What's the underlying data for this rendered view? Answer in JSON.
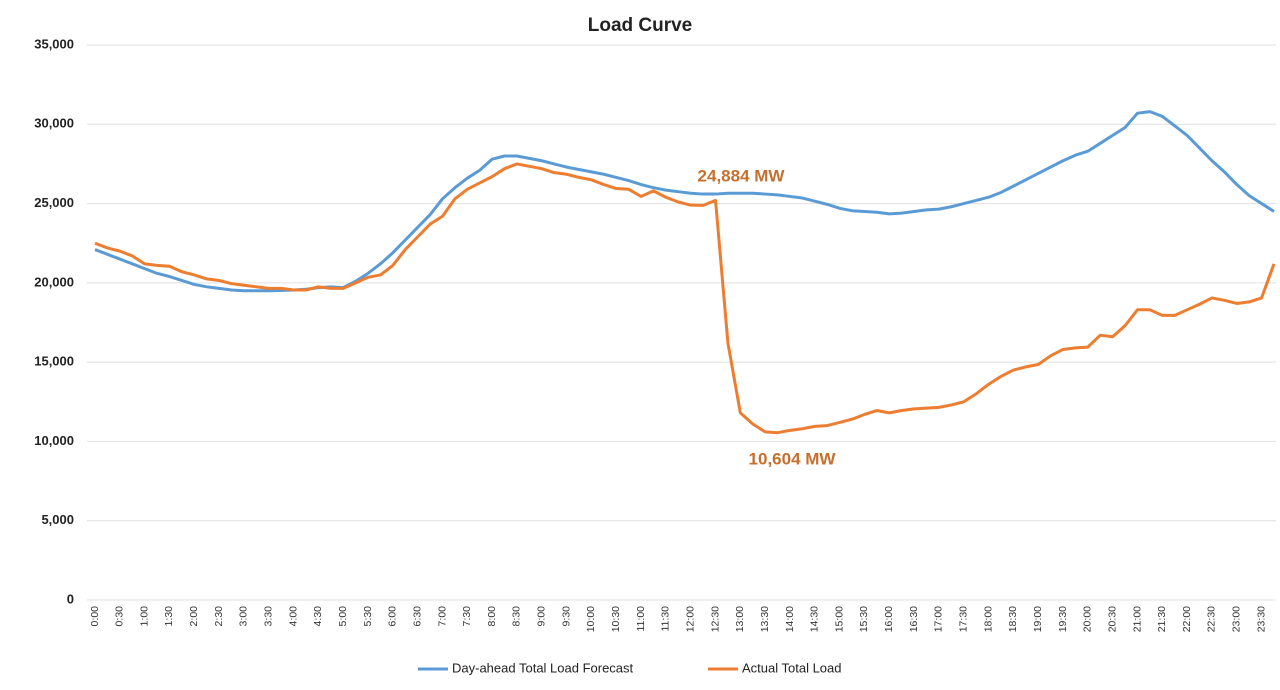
{
  "chart_data": {
    "type": "line",
    "title": "Load Curve",
    "categories": [
      "0:00",
      null,
      "0:30",
      null,
      "1:00",
      null,
      "1:30",
      null,
      "2:00",
      null,
      "2:30",
      null,
      "3:00",
      null,
      "3:30",
      null,
      "4:00",
      null,
      "4:30",
      null,
      "5:00",
      null,
      "5:30",
      null,
      "6:00",
      null,
      "6:30",
      null,
      "7:00",
      null,
      "7:30",
      null,
      "8:00",
      null,
      "8:30",
      null,
      "9:00",
      null,
      "9:30",
      null,
      "10:00",
      null,
      "10:30",
      null,
      "11:00",
      null,
      "11:30",
      null,
      "12:00",
      null,
      "12:30",
      null,
      "13:00",
      null,
      "13:30",
      null,
      "14:00",
      null,
      "14:30",
      null,
      "15:00",
      null,
      "15:30",
      null,
      "16:00",
      null,
      "16:30",
      null,
      "17:00",
      null,
      "17:30",
      null,
      "18:00",
      null,
      "18:30",
      null,
      "19:00",
      null,
      "19:30",
      null,
      "20:00",
      null,
      "20:30",
      null,
      "21:00",
      null,
      "21:30",
      null,
      "22:00",
      null,
      "22:30",
      null,
      "23:00",
      null,
      "23:30",
      null
    ],
    "series": [
      {
        "name": "Day-ahead Total Load Forecast",
        "color": "#5b9bd5",
        "values": [
          22100,
          21800,
          21500,
          21200,
          20900,
          20600,
          20400,
          20150,
          19900,
          19750,
          19650,
          19550,
          19500,
          19500,
          19500,
          19520,
          19550,
          19600,
          19700,
          19750,
          19700,
          20100,
          20600,
          21200,
          21900,
          22700,
          23500,
          24300,
          25300,
          26000,
          26600,
          27100,
          27800,
          28000,
          28000,
          27850,
          27700,
          27500,
          27300,
          27150,
          27000,
          26850,
          26650,
          26450,
          26200,
          26000,
          25850,
          25750,
          25650,
          25600,
          25600,
          25650,
          25650,
          25650,
          25600,
          25550,
          25450,
          25350,
          25150,
          24950,
          24700,
          24550,
          24500,
          24450,
          24350,
          24400,
          24500,
          24600,
          24650,
          24800,
          25000,
          25200,
          25400,
          25700,
          26100,
          26500,
          26900,
          27300,
          27700,
          28050,
          28300,
          28800,
          29300,
          29800,
          30700,
          30800,
          30500,
          29900,
          29300,
          28500,
          27700,
          27000,
          26200,
          25500,
          25000,
          24500
        ]
      },
      {
        "name": "Actual Total Load",
        "color": "#ed7d31",
        "values": [
          22500,
          22200,
          22000,
          21700,
          21200,
          21100,
          21050,
          20700,
          20500,
          20250,
          20150,
          19950,
          19850,
          19750,
          19650,
          19650,
          19550,
          19550,
          19750,
          19650,
          19650,
          20000,
          20350,
          20500,
          21100,
          22100,
          22900,
          23700,
          24200,
          25300,
          25900,
          26300,
          26700,
          27200,
          27500,
          27350,
          27200,
          26950,
          26850,
          26650,
          26500,
          26200,
          25950,
          25900,
          25450,
          25800,
          25400,
          25100,
          24900,
          24884,
          25200,
          16200,
          11800,
          11100,
          10604,
          10550,
          10700,
          10800,
          10950,
          11000,
          11200,
          11400,
          11700,
          11950,
          11800,
          11950,
          12050,
          12100,
          12150,
          12300,
          12500,
          13000,
          13600,
          14100,
          14500,
          14700,
          14850,
          15400,
          15800,
          15900,
          15950,
          16700,
          16600,
          17300,
          18300,
          18300,
          17950,
          17950,
          18300,
          18650,
          19050,
          18900,
          18700,
          18800,
          19050,
          21200
        ]
      }
    ],
    "annotations": [
      "24,884 MW",
      "10,604 MW"
    ],
    "ylim": [
      0,
      35000
    ],
    "yticks": [
      0,
      {
        "value": 5000,
        "label": "5,000"
      },
      {
        "value": 10000,
        "label": "10,000"
      },
      {
        "value": 15000,
        "label": "15,000"
      },
      {
        "value": 20000,
        "label": "20,000"
      },
      {
        "value": 25000,
        "label": "25,000"
      },
      {
        "value": 30000,
        "label": "30,000"
      },
      {
        "value": 35000,
        "label": "35,000"
      }
    ],
    "grid": true,
    "legend": "bottom"
  }
}
